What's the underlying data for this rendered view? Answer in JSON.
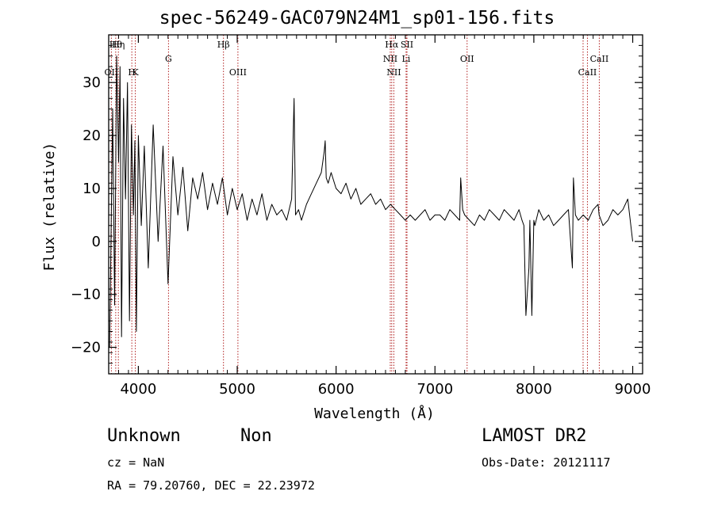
{
  "chart_data": {
    "type": "line",
    "title": "spec-56249-GAC079N24M1_sp01-156.fits",
    "xlabel": "Wavelength (Å)",
    "ylabel": "Flux (relative)",
    "xlim": [
      3700,
      9100
    ],
    "ylim": [
      -25,
      39
    ],
    "xticks": [
      4000,
      5000,
      6000,
      7000,
      8000,
      9000
    ],
    "xtick_labels": [
      "4000",
      "5000",
      "6000",
      "7000",
      "8000",
      "9000"
    ],
    "yticks": [
      -20,
      -10,
      0,
      10,
      20,
      30
    ],
    "ytick_labels": [
      "−20",
      "−10",
      "0",
      "10",
      "20",
      "30"
    ],
    "grid": false,
    "line_color": "#000000",
    "marker_line_color": "#b22222",
    "series": [
      {
        "x": [
          3710,
          3740,
          3760,
          3780,
          3800,
          3815,
          3830,
          3850,
          3870,
          3890,
          3910,
          3930,
          3950,
          3965,
          3980,
          4000,
          4030,
          4060,
          4100,
          4150,
          4200,
          4250,
          4300,
          4350,
          4400,
          4450,
          4500,
          4550,
          4600,
          4650,
          4700,
          4750,
          4800,
          4850,
          4900,
          4950,
          5000,
          5050,
          5100,
          5150,
          5200,
          5250,
          5300,
          5350,
          5400,
          5450,
          5500,
          5550,
          5575,
          5590,
          5620,
          5650,
          5700,
          5750,
          5800,
          5850,
          5880,
          5890,
          5900,
          5920,
          5950,
          6000,
          6050,
          6100,
          6150,
          6200,
          6250,
          6300,
          6350,
          6400,
          6450,
          6500,
          6550,
          6600,
          6650,
          6700,
          6750,
          6800,
          6850,
          6900,
          6950,
          7000,
          7050,
          7100,
          7150,
          7200,
          7250,
          7260,
          7280,
          7300,
          7350,
          7400,
          7450,
          7500,
          7550,
          7600,
          7650,
          7700,
          7750,
          7800,
          7850,
          7880,
          7900,
          7920,
          7950,
          7960,
          7980,
          8000,
          8010,
          8050,
          8100,
          8150,
          8200,
          8250,
          8300,
          8350,
          8390,
          8400,
          8420,
          8450,
          8500,
          8550,
          8600,
          8650,
          8660,
          8700,
          8750,
          8800,
          8850,
          8900,
          8950,
          9000
        ],
        "y": [
          -20,
          25,
          -12,
          35,
          15,
          33,
          -18,
          27,
          8,
          30,
          -15,
          22,
          5,
          19,
          -17,
          20,
          3,
          18,
          -5,
          22,
          0,
          18,
          -8,
          16,
          5,
          14,
          2,
          12,
          8,
          13,
          6,
          11,
          7,
          12,
          5,
          10,
          6,
          9,
          4,
          8,
          5,
          9,
          4,
          7,
          5,
          6,
          4,
          8,
          27,
          5,
          6,
          4,
          7,
          9,
          11,
          13,
          17,
          19,
          12,
          11,
          13,
          10,
          9,
          11,
          8,
          10,
          7,
          8,
          9,
          7,
          8,
          6,
          7,
          6,
          5,
          4,
          5,
          4,
          5,
          6,
          4,
          5,
          5,
          4,
          6,
          5,
          4,
          12,
          6,
          5,
          4,
          3,
          5,
          4,
          6,
          5,
          4,
          6,
          5,
          4,
          6,
          4,
          3,
          -14,
          -5,
          4,
          -14,
          4,
          3,
          6,
          4,
          5,
          3,
          4,
          5,
          6,
          -5,
          12,
          5,
          4,
          5,
          4,
          6,
          7,
          5,
          3,
          4,
          6,
          5,
          6,
          8,
          0
        ]
      }
    ],
    "line_markers": [
      {
        "label": "Hθ",
        "x": 3771,
        "row": 0
      },
      {
        "label": "Hη",
        "x": 3798,
        "row": 0
      },
      {
        "label": "OII",
        "x": 3727,
        "row": 2
      },
      {
        "label": "H",
        "x": 3934,
        "row": 2
      },
      {
        "label": "K",
        "x": 3969,
        "row": 2
      },
      {
        "label": "G",
        "x": 4305,
        "row": 1
      },
      {
        "label": "Hβ",
        "x": 4861,
        "row": 0
      },
      {
        "label": "OIII",
        "x": 5007,
        "row": 2
      },
      {
        "label": "Hα",
        "x": 6563,
        "row": 0
      },
      {
        "label": "SII",
        "x": 6717,
        "row": 0
      },
      {
        "label": "NII",
        "x": 6548,
        "row": 1
      },
      {
        "label": "Li",
        "x": 6708,
        "row": 1
      },
      {
        "label": "NII",
        "x": 6584,
        "row": 2
      },
      {
        "label": "OII",
        "x": 7325,
        "row": 1
      },
      {
        "label": "CaII",
        "x": 8662,
        "row": 1
      },
      {
        "label": "CaII",
        "x": 8542,
        "row": 2
      }
    ],
    "marker_positions": [
      3727,
      3771,
      3798,
      3934,
      3969,
      4305,
      4861,
      5007,
      6548,
      6563,
      6584,
      6708,
      6717,
      7325,
      8498,
      8542,
      8662
    ]
  },
  "info": {
    "classification": "Unknown",
    "subclass": "Non",
    "survey": "LAMOST DR2",
    "cz": "cz = NaN",
    "obs_date": "Obs-Date: 20121117",
    "radec": "RA =  79.20760, DEC =  22.23972"
  }
}
